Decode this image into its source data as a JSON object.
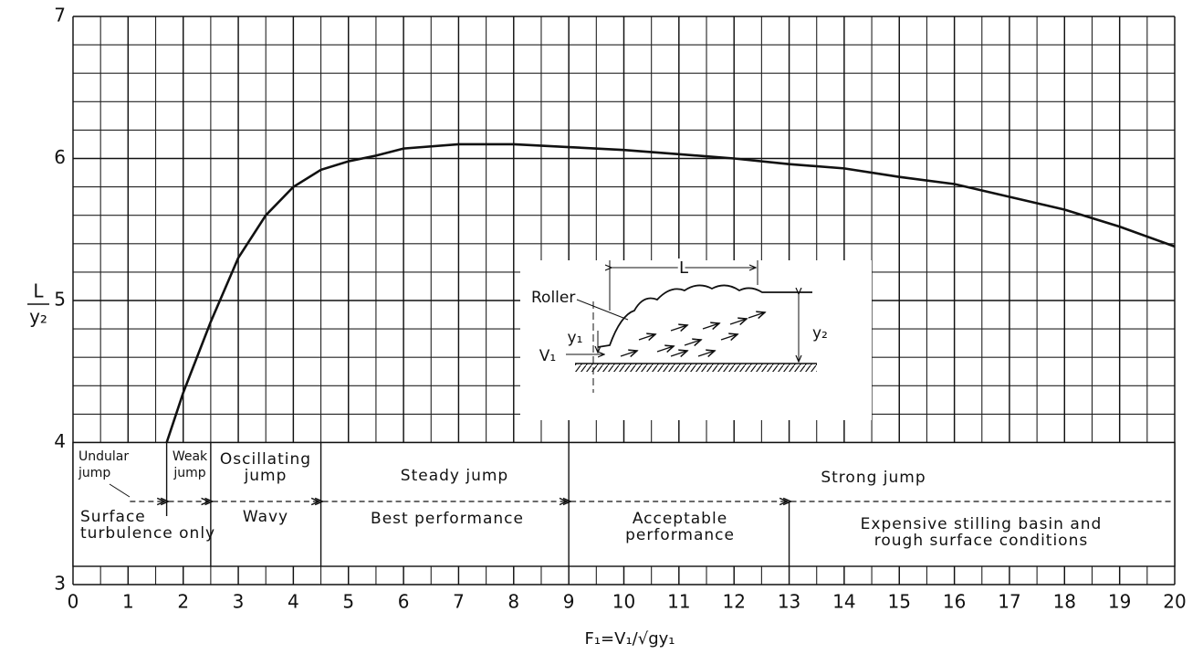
{
  "chart_data": {
    "type": "line",
    "x_label": "F₁=V₁/√gy₁",
    "y_label": {
      "numerator": "L",
      "denominator": "y₂"
    },
    "x": [
      1.7,
      2,
      2.5,
      3,
      3.5,
      4,
      4.5,
      5,
      5.5,
      6,
      7,
      8,
      9,
      10,
      11,
      12,
      13,
      14,
      15,
      16,
      17,
      18,
      19,
      20
    ],
    "series": [
      {
        "color": "#111111",
        "values": [
          4.0,
          4.35,
          4.85,
          5.3,
          5.6,
          5.8,
          5.92,
          5.98,
          6.02,
          6.07,
          6.1,
          6.1,
          6.08,
          6.06,
          6.03,
          6.0,
          5.96,
          5.93,
          5.87,
          5.82,
          5.73,
          5.64,
          5.52,
          5.38
        ]
      }
    ],
    "xlim": [
      0,
      20
    ],
    "ylim": [
      3,
      7
    ],
    "xticks": [
      0,
      1,
      2,
      3,
      4,
      5,
      6,
      7,
      8,
      9,
      10,
      11,
      12,
      13,
      14,
      15,
      16,
      17,
      18,
      19,
      20
    ],
    "yticks": [
      3,
      4,
      5,
      6,
      7
    ],
    "grid": {
      "x_step": 0.5,
      "y_step": 0.2
    },
    "boundaries": [
      1.7,
      2.5,
      4.5,
      9,
      13
    ],
    "annotations": [
      {
        "lines": [
          "Undular",
          "jump"
        ]
      },
      {
        "lines": [
          "Weak",
          "jump"
        ]
      },
      {
        "lines": [
          "Oscillating",
          "jump"
        ]
      },
      {
        "lines": [
          "Steady jump"
        ]
      },
      {
        "lines": [
          "Strong jump"
        ]
      },
      {
        "lines": [
          "Surface",
          "turbulence only"
        ]
      },
      {
        "lines": [
          "Wavy"
        ]
      },
      {
        "lines": [
          "Best performance"
        ]
      },
      {
        "lines": [
          "Acceptable",
          "performance"
        ]
      },
      {
        "lines": [
          "Expensive stilling basin and",
          "rough surface conditions"
        ]
      }
    ],
    "inset": {
      "length": "L",
      "roller": "Roller",
      "y1": "y₁",
      "v1": "V₁",
      "y2": "y₂"
    }
  }
}
